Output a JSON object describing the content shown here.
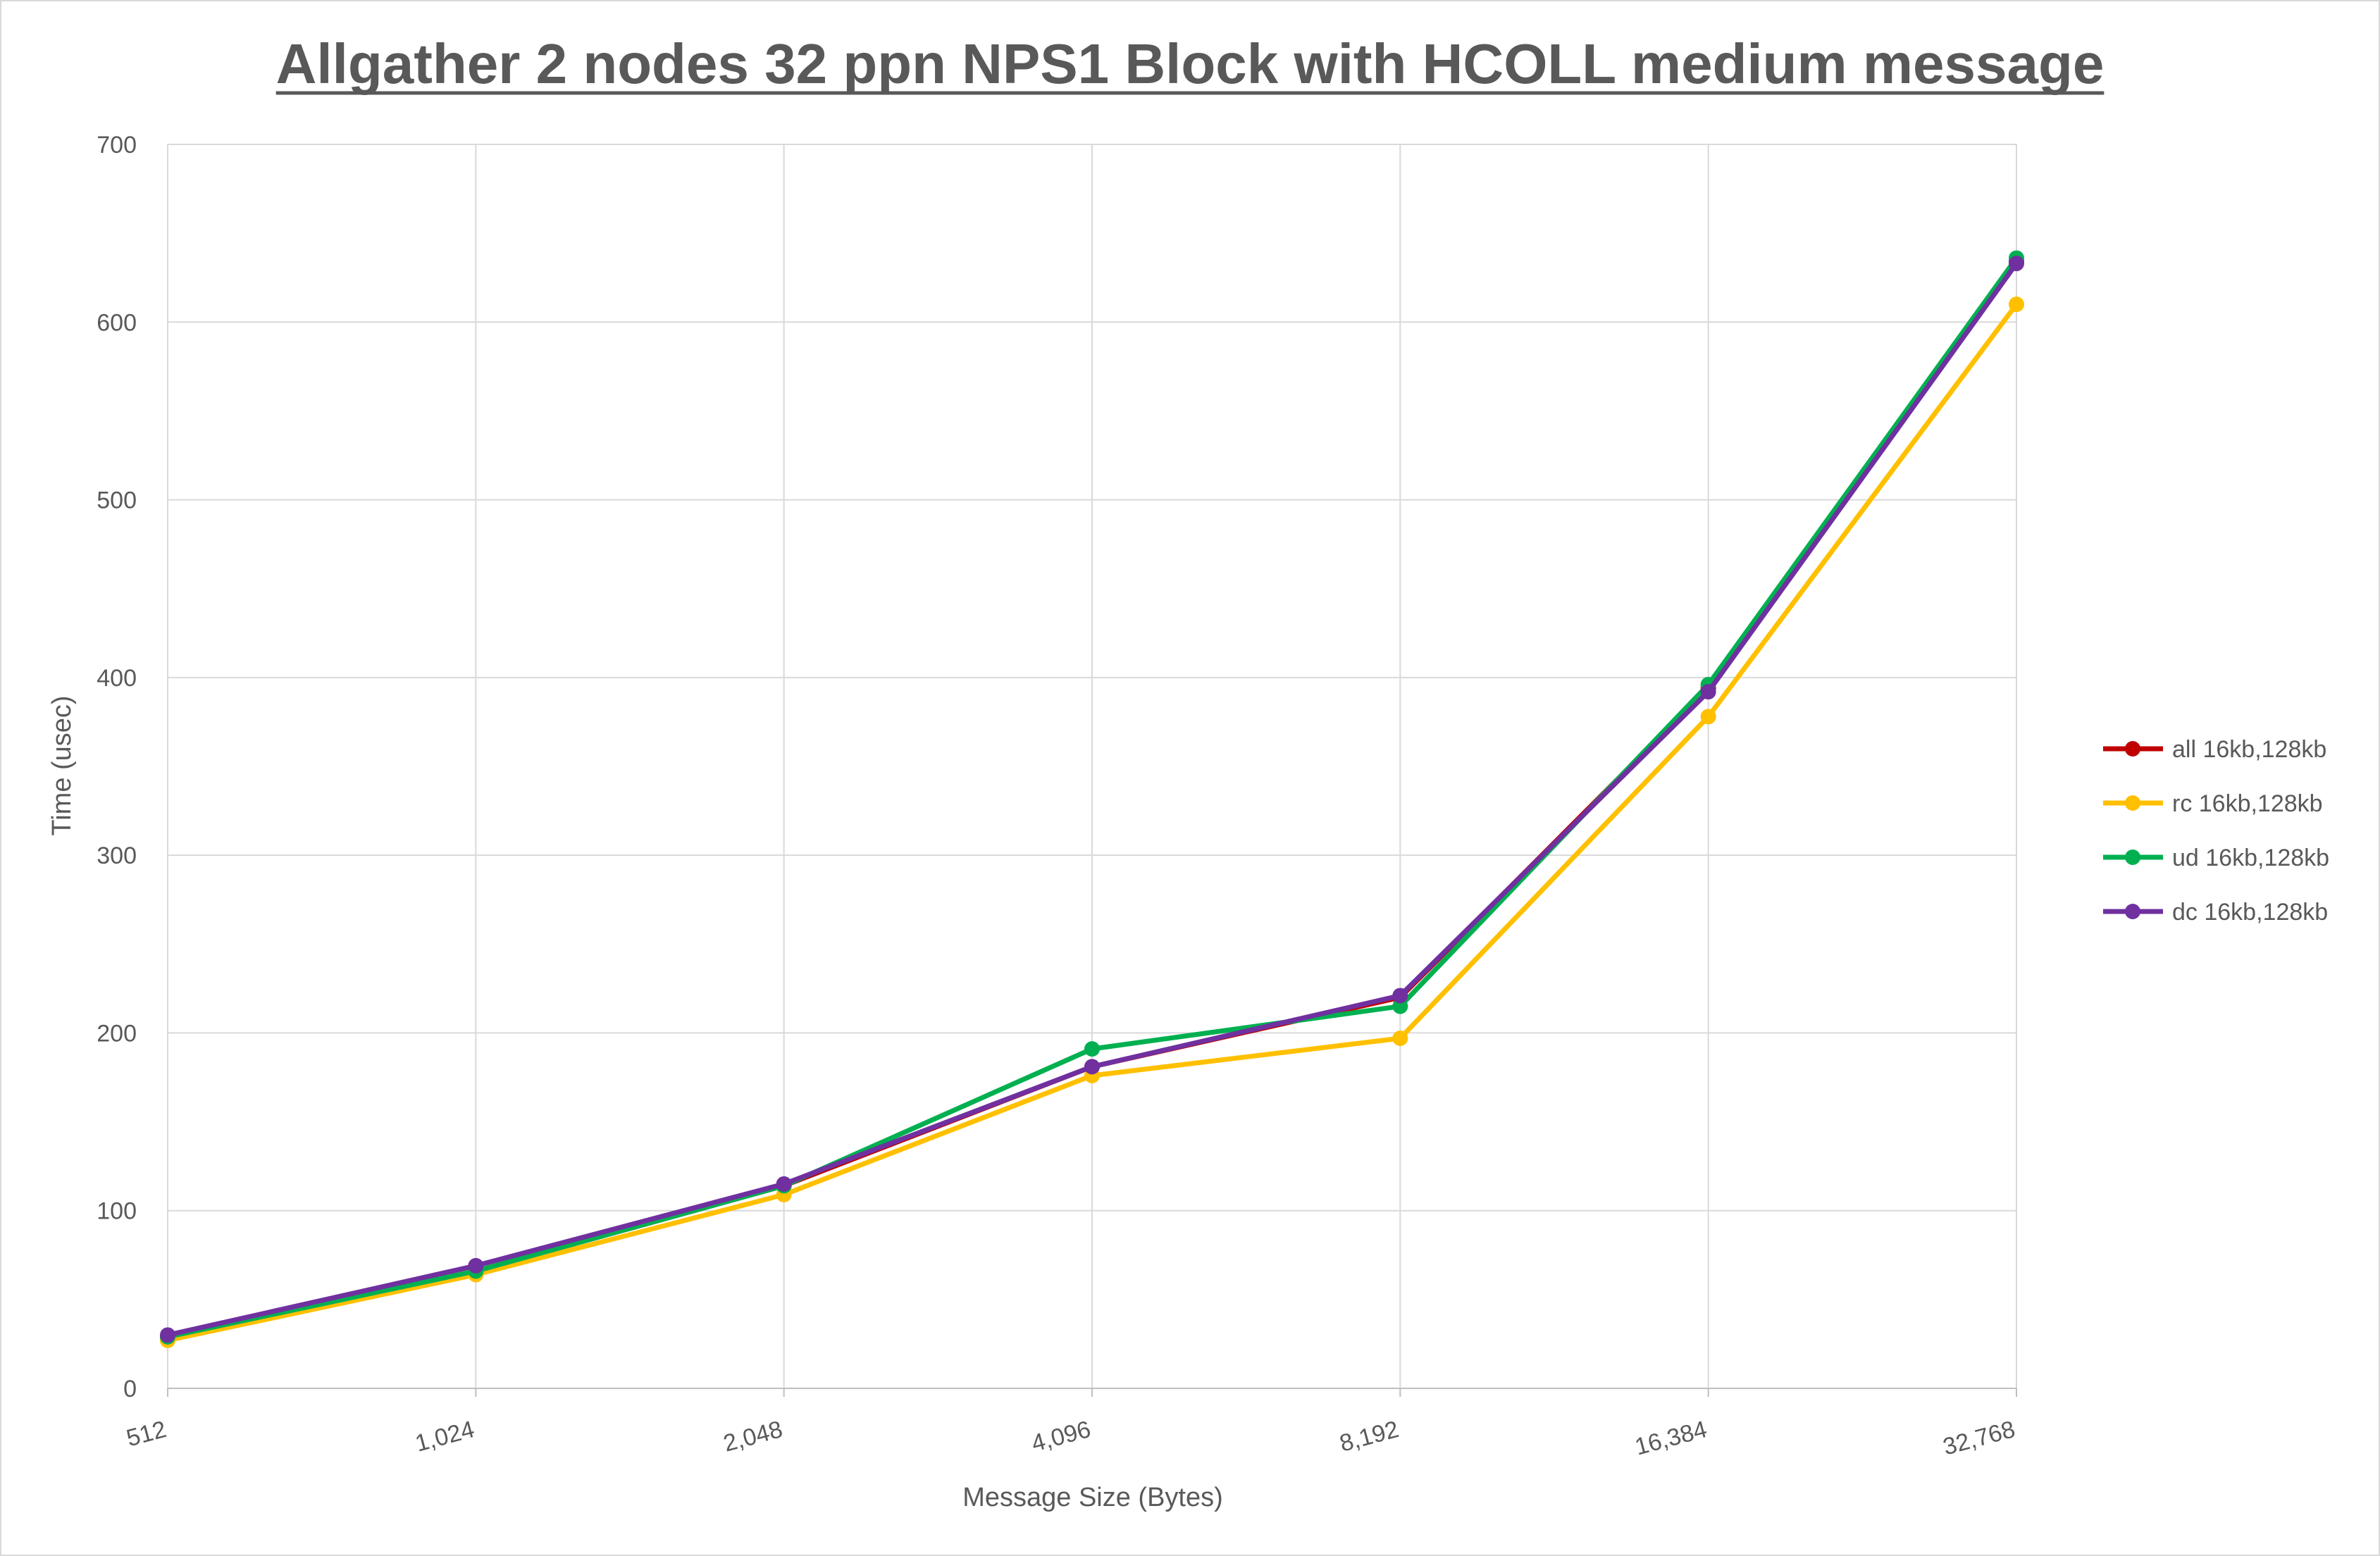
{
  "chart_data": {
    "type": "line",
    "title": "Allgather 2 nodes 32 ppn NPS1 Block with HCOLL medium message",
    "xlabel": "Message Size (Bytes)",
    "ylabel": "Time (usec)",
    "categories": [
      "512",
      "1,024",
      "2,048",
      "4,096",
      "8,192",
      "16,384",
      "32,768"
    ],
    "ylim": [
      0,
      700
    ],
    "yticks": [
      0,
      100,
      200,
      300,
      400,
      500,
      600,
      700
    ],
    "grid": true,
    "legend_position": "right",
    "series": [
      {
        "name": "all 16kb,128kb",
        "color": "#c00000",
        "values": [
          29,
          66,
          114,
          181,
          220,
          394,
          634
        ]
      },
      {
        "name": "rc 16kb,128kb",
        "color": "#ffc000",
        "values": [
          27,
          64,
          109,
          176,
          197,
          378,
          610
        ]
      },
      {
        "name": "ud 16kb,128kb",
        "color": "#00b050",
        "values": [
          29,
          66,
          114,
          191,
          215,
          396,
          636
        ]
      },
      {
        "name": "dc 16kb,128kb",
        "color": "#7030a0",
        "values": [
          30,
          69,
          115,
          181,
          221,
          392,
          633
        ]
      }
    ]
  }
}
